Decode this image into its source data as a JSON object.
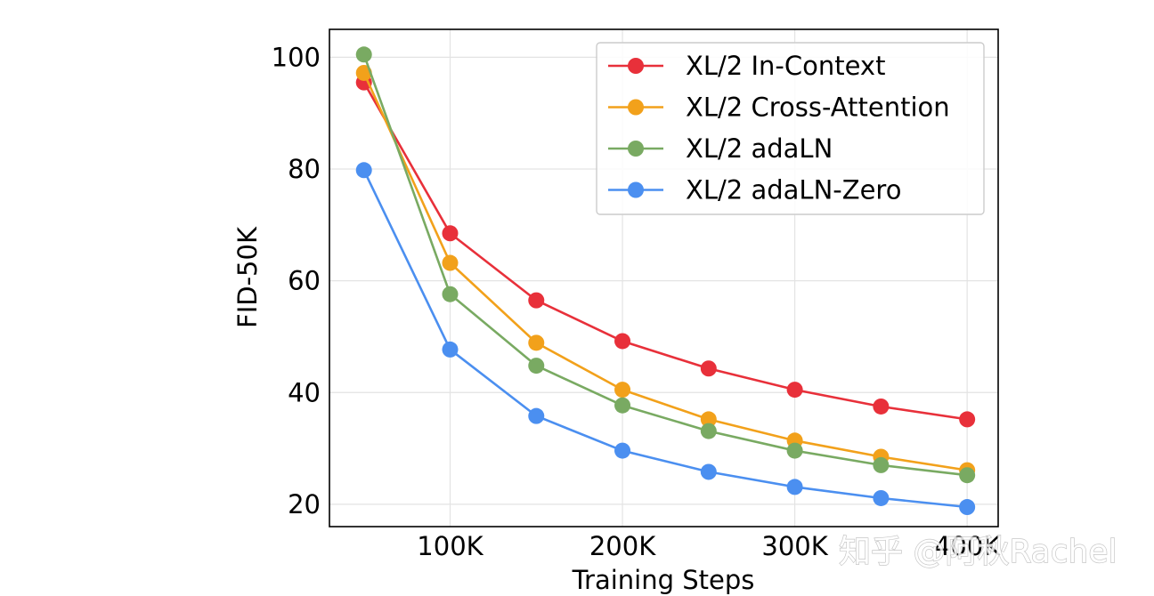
{
  "chart_data": {
    "type": "line",
    "title": "",
    "xlabel": "Training Steps",
    "ylabel": "FID-50K",
    "x": [
      50000,
      100000,
      150000,
      200000,
      250000,
      300000,
      350000,
      400000
    ],
    "xlim": [
      30000,
      418000
    ],
    "ylim": [
      16,
      105
    ],
    "xticks": [
      100000,
      200000,
      300000,
      400000
    ],
    "xtick_labels": [
      "100K",
      "200K",
      "300K",
      "400K"
    ],
    "yticks": [
      20,
      40,
      60,
      80,
      100
    ],
    "ytick_labels": [
      "20",
      "40",
      "60",
      "80",
      "100"
    ],
    "grid": true,
    "legend_position": "top-right",
    "series": [
      {
        "name": "XL/2 In-Context",
        "color": "#e8303a",
        "values": [
          95.5,
          68.5,
          56.5,
          49.2,
          44.3,
          40.5,
          37.5,
          35.2
        ]
      },
      {
        "name": "XL/2 Cross-Attention",
        "color": "#f2a11b",
        "values": [
          97.2,
          63.2,
          48.9,
          40.5,
          35.2,
          31.4,
          28.5,
          26.1
        ]
      },
      {
        "name": "XL/2 adaLN",
        "color": "#79aa62",
        "values": [
          100.5,
          57.6,
          44.8,
          37.7,
          33.1,
          29.6,
          27.0,
          25.2
        ]
      },
      {
        "name": "XL/2 adaLN-Zero",
        "color": "#4b8ff0",
        "values": [
          79.8,
          47.7,
          35.8,
          29.6,
          25.8,
          23.1,
          21.1,
          19.5
        ]
      }
    ]
  },
  "watermark": {
    "text": "知乎 @阿秋Rachel"
  }
}
